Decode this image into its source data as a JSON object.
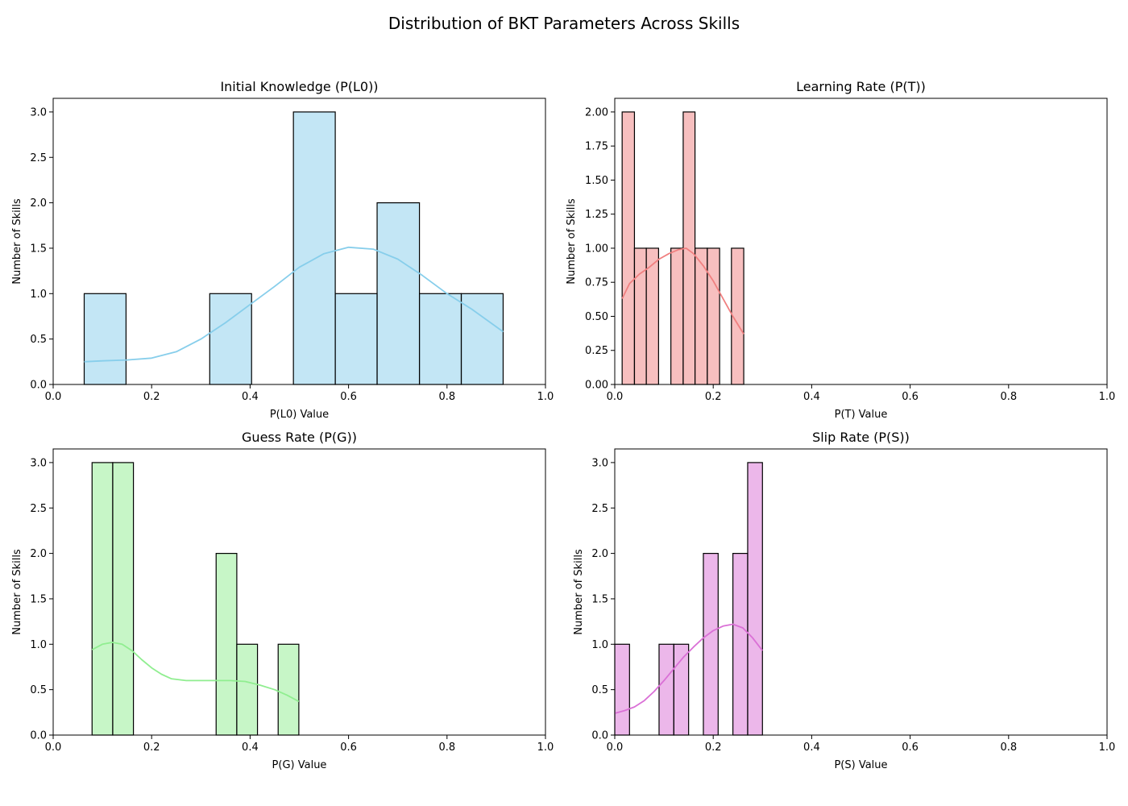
{
  "figure": {
    "suptitle": "Distribution of BKT Parameters Across Skills"
  },
  "chart_data": [
    {
      "type": "bar",
      "subtype": "histogram-with-kde",
      "title": "Initial Knowledge (P(L0))",
      "xlabel": "P(L0) Value",
      "ylabel": "Number of Skills",
      "xlim": [
        0,
        1
      ],
      "ylim": [
        0,
        3.15
      ],
      "xticks": [
        "0.0",
        "0.2",
        "0.4",
        "0.6",
        "0.8",
        "1.0"
      ],
      "yticks": [
        "0.0",
        "0.5",
        "1.0",
        "1.5",
        "2.0",
        "2.5",
        "3.0"
      ],
      "color": "#87ceeb",
      "bins": [
        {
          "x0": 0.063,
          "x1": 0.148,
          "count": 1
        },
        {
          "x0": 0.148,
          "x1": 0.233,
          "count": 0
        },
        {
          "x0": 0.233,
          "x1": 0.318,
          "count": 0
        },
        {
          "x0": 0.318,
          "x1": 0.403,
          "count": 1
        },
        {
          "x0": 0.403,
          "x1": 0.488,
          "count": 0
        },
        {
          "x0": 0.488,
          "x1": 0.573,
          "count": 3
        },
        {
          "x0": 0.573,
          "x1": 0.658,
          "count": 1
        },
        {
          "x0": 0.658,
          "x1": 0.744,
          "count": 2
        },
        {
          "x0": 0.744,
          "x1": 0.829,
          "count": 1
        },
        {
          "x0": 0.829,
          "x1": 0.914,
          "count": 1
        }
      ],
      "kde": [
        [
          0.063,
          0.25
        ],
        [
          0.1,
          0.26
        ],
        [
          0.15,
          0.27
        ],
        [
          0.2,
          0.29
        ],
        [
          0.25,
          0.36
        ],
        [
          0.3,
          0.5
        ],
        [
          0.35,
          0.68
        ],
        [
          0.4,
          0.88
        ],
        [
          0.45,
          1.08
        ],
        [
          0.5,
          1.29
        ],
        [
          0.55,
          1.44
        ],
        [
          0.6,
          1.51
        ],
        [
          0.65,
          1.49
        ],
        [
          0.7,
          1.38
        ],
        [
          0.75,
          1.2
        ],
        [
          0.8,
          1.0
        ],
        [
          0.85,
          0.83
        ],
        [
          0.914,
          0.58
        ]
      ]
    },
    {
      "type": "bar",
      "subtype": "histogram-with-kde",
      "title": "Learning Rate (P(T))",
      "xlabel": "P(T) Value",
      "ylabel": "Number of Skills",
      "xlim": [
        0,
        1
      ],
      "ylim": [
        0,
        2.1
      ],
      "xticks": [
        "0.0",
        "0.2",
        "0.4",
        "0.6",
        "0.8",
        "1.0"
      ],
      "yticks": [
        "0.00",
        "0.25",
        "0.50",
        "0.75",
        "1.00",
        "1.25",
        "1.50",
        "1.75",
        "2.00"
      ],
      "color": "#f08080",
      "bins": [
        {
          "x0": 0.015,
          "x1": 0.04,
          "count": 2
        },
        {
          "x0": 0.04,
          "x1": 0.064,
          "count": 1
        },
        {
          "x0": 0.064,
          "x1": 0.089,
          "count": 1
        },
        {
          "x0": 0.089,
          "x1": 0.114,
          "count": 0
        },
        {
          "x0": 0.114,
          "x1": 0.139,
          "count": 1
        },
        {
          "x0": 0.139,
          "x1": 0.163,
          "count": 2
        },
        {
          "x0": 0.163,
          "x1": 0.188,
          "count": 1
        },
        {
          "x0": 0.188,
          "x1": 0.213,
          "count": 1
        },
        {
          "x0": 0.213,
          "x1": 0.237,
          "count": 0
        },
        {
          "x0": 0.237,
          "x1": 0.262,
          "count": 1
        }
      ],
      "kde": [
        [
          0.015,
          0.63
        ],
        [
          0.03,
          0.74
        ],
        [
          0.05,
          0.81
        ],
        [
          0.07,
          0.86
        ],
        [
          0.09,
          0.92
        ],
        [
          0.11,
          0.96
        ],
        [
          0.13,
          0.99
        ],
        [
          0.145,
          1.0
        ],
        [
          0.16,
          0.96
        ],
        [
          0.18,
          0.87
        ],
        [
          0.2,
          0.76
        ],
        [
          0.22,
          0.63
        ],
        [
          0.24,
          0.5
        ],
        [
          0.262,
          0.37
        ]
      ]
    },
    {
      "type": "bar",
      "subtype": "histogram-with-kde",
      "title": "Guess Rate (P(G))",
      "xlabel": "P(G) Value",
      "ylabel": "Number of Skills",
      "xlim": [
        0,
        1
      ],
      "ylim": [
        0,
        3.15
      ],
      "xticks": [
        "0.0",
        "0.2",
        "0.4",
        "0.6",
        "0.8",
        "1.0"
      ],
      "yticks": [
        "0.0",
        "0.5",
        "1.0",
        "1.5",
        "2.0",
        "2.5",
        "3.0"
      ],
      "color": "#90ee90",
      "bins": [
        {
          "x0": 0.079,
          "x1": 0.121,
          "count": 3
        },
        {
          "x0": 0.121,
          "x1": 0.163,
          "count": 3
        },
        {
          "x0": 0.163,
          "x1": 0.205,
          "count": 0
        },
        {
          "x0": 0.205,
          "x1": 0.247,
          "count": 0
        },
        {
          "x0": 0.247,
          "x1": 0.289,
          "count": 0
        },
        {
          "x0": 0.289,
          "x1": 0.331,
          "count": 0
        },
        {
          "x0": 0.331,
          "x1": 0.373,
          "count": 2
        },
        {
          "x0": 0.373,
          "x1": 0.415,
          "count": 1
        },
        {
          "x0": 0.415,
          "x1": 0.457,
          "count": 0
        },
        {
          "x0": 0.457,
          "x1": 0.499,
          "count": 1
        }
      ],
      "kde": [
        [
          0.079,
          0.94
        ],
        [
          0.1,
          1.0
        ],
        [
          0.12,
          1.02
        ],
        [
          0.14,
          1.0
        ],
        [
          0.16,
          0.93
        ],
        [
          0.18,
          0.83
        ],
        [
          0.2,
          0.74
        ],
        [
          0.22,
          0.67
        ],
        [
          0.24,
          0.62
        ],
        [
          0.27,
          0.6
        ],
        [
          0.3,
          0.6
        ],
        [
          0.33,
          0.6
        ],
        [
          0.36,
          0.6
        ],
        [
          0.39,
          0.59
        ],
        [
          0.42,
          0.55
        ],
        [
          0.45,
          0.5
        ],
        [
          0.475,
          0.44
        ],
        [
          0.499,
          0.37
        ]
      ]
    },
    {
      "type": "bar",
      "subtype": "histogram-with-kde",
      "title": "Slip Rate (P(S))",
      "xlabel": "P(S) Value",
      "ylabel": "Number of Skills",
      "xlim": [
        0,
        1
      ],
      "ylim": [
        0,
        3.15
      ],
      "xticks": [
        "0.0",
        "0.2",
        "0.4",
        "0.6",
        "0.8",
        "1.0"
      ],
      "yticks": [
        "0.0",
        "0.5",
        "1.0",
        "1.5",
        "2.0",
        "2.5",
        "3.0"
      ],
      "color": "#da70d6",
      "bins": [
        {
          "x0": 0.0,
          "x1": 0.03,
          "count": 1
        },
        {
          "x0": 0.03,
          "x1": 0.06,
          "count": 0
        },
        {
          "x0": 0.06,
          "x1": 0.09,
          "count": 0
        },
        {
          "x0": 0.09,
          "x1": 0.12,
          "count": 1
        },
        {
          "x0": 0.12,
          "x1": 0.15,
          "count": 1
        },
        {
          "x0": 0.15,
          "x1": 0.18,
          "count": 0
        },
        {
          "x0": 0.18,
          "x1": 0.21,
          "count": 2
        },
        {
          "x0": 0.21,
          "x1": 0.24,
          "count": 0
        },
        {
          "x0": 0.24,
          "x1": 0.27,
          "count": 2
        },
        {
          "x0": 0.27,
          "x1": 0.3,
          "count": 3
        }
      ],
      "kde": [
        [
          0.0,
          0.24
        ],
        [
          0.02,
          0.27
        ],
        [
          0.04,
          0.31
        ],
        [
          0.06,
          0.38
        ],
        [
          0.08,
          0.48
        ],
        [
          0.1,
          0.6
        ],
        [
          0.12,
          0.73
        ],
        [
          0.14,
          0.86
        ],
        [
          0.16,
          0.97
        ],
        [
          0.18,
          1.07
        ],
        [
          0.2,
          1.15
        ],
        [
          0.22,
          1.2
        ],
        [
          0.24,
          1.22
        ],
        [
          0.26,
          1.18
        ],
        [
          0.28,
          1.07
        ],
        [
          0.3,
          0.93
        ]
      ]
    }
  ]
}
